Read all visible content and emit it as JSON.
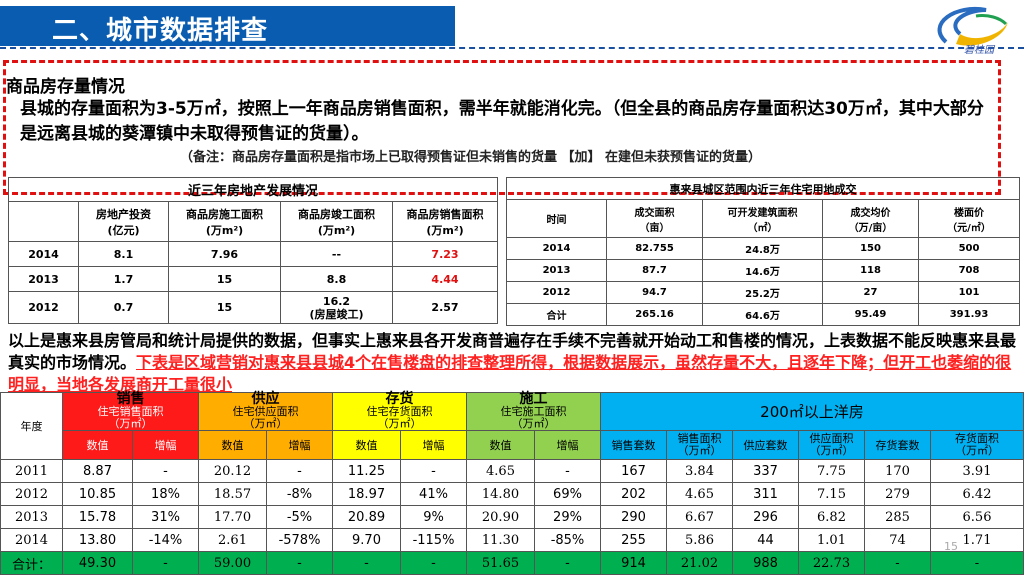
{
  "header": {
    "title": "二、城市数据排查",
    "logo_text": "碧桂园"
  },
  "section": {
    "title": "商品房存量情况",
    "para1": "县城的存量面积为3-5万㎡，按照上一年商品房销售面积，需半年就能消化完。（但全县的商品房存量面积达30万㎡，其中大部分是远离县城的葵潭镇中未取得预售证的货量）。",
    "note": "（备注：商品房存量面积是指市场上已取得预售证但未销售的货量 【加】 在建但未获预售证的货量）"
  },
  "table1": {
    "caption": "近三年房地产发展情况",
    "headers": [
      "",
      "房地产投资\n(亿元)",
      "商品房施工面积\n(万m²)",
      "商品房竣工面积\n(万m²)",
      "商品房销售面积\n(万m²)"
    ],
    "rows": [
      [
        "2014",
        "8.1",
        "7.96",
        "--",
        "7.23"
      ],
      [
        "2013",
        "1.7",
        "15",
        "8.8",
        "4.44"
      ],
      [
        "2012",
        "0.7",
        "15",
        "16.2\n(房屋竣工)",
        "2.57"
      ]
    ]
  },
  "table2": {
    "caption": "惠来县城区范围内近三年住宅用地成交",
    "headers": [
      "时间",
      "成交面积\n（亩）",
      "可开发建筑面积\n（㎡）",
      "成交均价\n（万/亩）",
      "楼面价\n（元/㎡）"
    ],
    "rows": [
      [
        "2014",
        "82.755",
        "24.8万",
        "150",
        "500"
      ],
      [
        "2013",
        "87.7",
        "14.6万",
        "118",
        "708"
      ],
      [
        "2012",
        "94.7",
        "25.2万",
        "27",
        "101"
      ],
      [
        "合计",
        "265.16",
        "64.6万",
        "95.49",
        "391.93"
      ]
    ]
  },
  "para2": {
    "normal": "以上是惠来县房管局和统计局提供的数据，但事实上惠来县各开发商普遍存在手续不完善就开始动工和售楼的情况，上表数据不能反映惠来县最真实的市场情况。",
    "highlight": "下表是区域营销对惠来县县城4个在售楼盘的排查整理所得，根据数据展示，虽然存量不大，且逐年下降；但开工也萎缩的很明显，当地各发展商开工量很小"
  },
  "table3": {
    "year_label": "年度",
    "groups": [
      {
        "label": "销售",
        "sub": "住宅销售面积\n（万㎡）"
      },
      {
        "label": "供应",
        "sub": "住宅供应面积\n（万㎡）"
      },
      {
        "label": "存货",
        "sub": "住宅存货面积\n（万㎡）"
      },
      {
        "label": "施工",
        "sub": "住宅施工面积\n（万㎡）"
      }
    ],
    "big_group": "200㎡以上洋房",
    "sub_value": "数值",
    "sub_change": "增幅",
    "big_subs": [
      "销售套数",
      "销售面积\n（万㎡）",
      "供应套数",
      "供应面积\n（万㎡）",
      "存货套数",
      "存货面积\n（万㎡）"
    ],
    "rows": [
      [
        "2011",
        "8.87",
        "-",
        "20.12",
        "-",
        "11.25",
        "-",
        "4.65",
        "-",
        "167",
        "3.84",
        "337",
        "7.75",
        "170",
        "3.91"
      ],
      [
        "2012",
        "10.85",
        "18%",
        "18.57",
        "-8%",
        "18.97",
        "41%",
        "14.80",
        "69%",
        "202",
        "4.65",
        "311",
        "7.15",
        "279",
        "6.42"
      ],
      [
        "2013",
        "15.78",
        "31%",
        "17.70",
        "-5%",
        "20.89",
        "9%",
        "20.90",
        "29%",
        "290",
        "6.67",
        "296",
        "6.82",
        "285",
        "6.56"
      ],
      [
        "2014",
        "13.80",
        "-14%",
        "2.61",
        "-578%",
        "9.70",
        "-115%",
        "11.30",
        "-85%",
        "255",
        "5.86",
        "44",
        "1.01",
        "74",
        "1.71"
      ]
    ],
    "total": [
      "合计：",
      "49.30",
      "-",
      "59.00",
      "-",
      "-",
      "-",
      "51.65",
      "-",
      "914",
      "21.02",
      "988",
      "22.73",
      "-",
      "-"
    ]
  },
  "page_number": "15"
}
